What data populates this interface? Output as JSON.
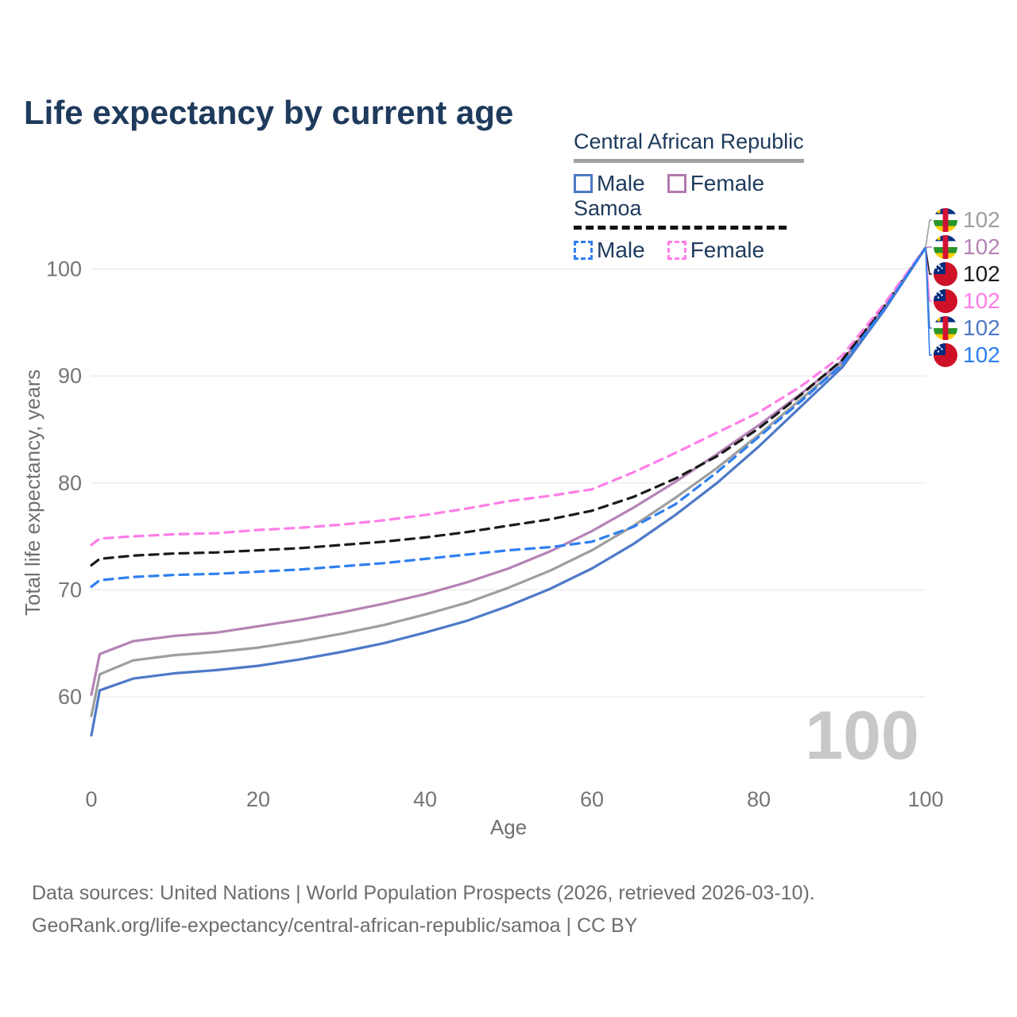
{
  "title": "Life expectancy by current age",
  "legend": {
    "groups": [
      {
        "id": "central-african-republic",
        "label": "Central African Republic",
        "rule_style": "solid",
        "rule_color": "#a0a0a0",
        "items": [
          {
            "id": "car-male",
            "label": "Male",
            "color": "#4d79c7",
            "dash": false
          },
          {
            "id": "car-female",
            "label": "Female",
            "color": "#b279ae",
            "dash": false
          }
        ]
      },
      {
        "id": "samoa",
        "label": "Samoa",
        "rule_style": "dashed",
        "rule_color": "#111111",
        "items": [
          {
            "id": "samoa-male",
            "label": "Male",
            "color": "#2e7ff0",
            "dash": true
          },
          {
            "id": "samoa-female",
            "label": "Female",
            "color": "#ff7de8",
            "dash": true
          }
        ]
      }
    ]
  },
  "chart_data": {
    "type": "line",
    "title": "Life expectancy by current age",
    "xlabel": "Age",
    "ylabel": "Total life expectancy, years",
    "xlim": [
      0,
      100
    ],
    "ylim": [
      55,
      103
    ],
    "x_ticks": [
      0,
      20,
      40,
      60,
      80,
      100
    ],
    "y_ticks": [
      60,
      70,
      80,
      90,
      100
    ],
    "grid": "horizontal-only",
    "legend_position": "top-right",
    "x": [
      0,
      1,
      5,
      10,
      15,
      20,
      25,
      30,
      35,
      40,
      45,
      50,
      55,
      60,
      65,
      70,
      75,
      80,
      85,
      90,
      95,
      100
    ],
    "series": [
      {
        "name": "Central African Republic — Total",
        "country": "Central African Republic",
        "group": "Total",
        "color": "#9e9e9e",
        "dash": false,
        "flag": "car",
        "end_label": "102",
        "values": [
          58.2,
          62.1,
          63.4,
          63.9,
          64.2,
          64.6,
          65.2,
          65.9,
          66.7,
          67.7,
          68.8,
          70.2,
          71.8,
          73.7,
          76.0,
          78.6,
          81.4,
          84.5,
          87.8,
          91.1,
          96.3,
          102
        ]
      },
      {
        "name": "Central African Republic — Female",
        "country": "Central African Republic",
        "group": "Female",
        "color": "#b583b5",
        "dash": false,
        "flag": "car",
        "end_label": "102",
        "values": [
          60.2,
          64.0,
          65.2,
          65.7,
          66.0,
          66.6,
          67.2,
          67.9,
          68.7,
          69.6,
          70.7,
          72.0,
          73.6,
          75.5,
          77.7,
          80.1,
          82.7,
          85.4,
          88.3,
          91.4,
          96.4,
          102
        ]
      },
      {
        "name": "Samoa — Total",
        "country": "Samoa",
        "group": "Total",
        "color": "#1a1a1a",
        "dash": true,
        "flag": "samoa",
        "end_label": "102",
        "values": [
          72.3,
          72.9,
          73.2,
          73.4,
          73.5,
          73.7,
          73.9,
          74.2,
          74.5,
          74.9,
          75.4,
          76.0,
          76.6,
          77.4,
          78.7,
          80.4,
          82.5,
          85.1,
          88.2,
          91.5,
          96.5,
          102
        ]
      },
      {
        "name": "Samoa — Female",
        "country": "Samoa",
        "group": "Female",
        "color": "#ff7de8",
        "dash": true,
        "flag": "samoa",
        "end_label": "102",
        "values": [
          74.2,
          74.8,
          75.0,
          75.2,
          75.3,
          75.6,
          75.8,
          76.1,
          76.5,
          77.0,
          77.6,
          78.3,
          78.8,
          79.4,
          81.0,
          82.8,
          84.7,
          86.6,
          89.0,
          91.9,
          96.7,
          102
        ]
      },
      {
        "name": "Central African Republic — Male",
        "country": "Central African Republic",
        "group": "Male",
        "color": "#4d79c7",
        "dash": false,
        "flag": "car",
        "end_label": "102",
        "values": [
          56.4,
          60.6,
          61.7,
          62.2,
          62.5,
          62.9,
          63.5,
          64.2,
          65.0,
          66.0,
          67.1,
          68.5,
          70.1,
          72.0,
          74.3,
          77.0,
          80.0,
          83.4,
          87.1,
          90.8,
          96.1,
          102
        ]
      },
      {
        "name": "Samoa — Male",
        "country": "Samoa",
        "group": "Male",
        "color": "#2e7ff0",
        "dash": true,
        "flag": "samoa",
        "end_label": "102",
        "values": [
          70.3,
          70.9,
          71.2,
          71.4,
          71.5,
          71.7,
          71.9,
          72.2,
          72.5,
          72.9,
          73.3,
          73.7,
          74.0,
          74.5,
          75.9,
          78.0,
          81.0,
          84.3,
          87.6,
          91.1,
          96.2,
          102
        ]
      }
    ]
  },
  "annotations": {
    "age_watermark": "100"
  },
  "footer": {
    "line1": "Data sources: United Nations | World Population Prospects (2026, retrieved 2026-03-10).",
    "line2": "GeoRank.org/life-expectancy/central-african-republic/samoa | CC BY"
  },
  "colors": {
    "title_text": "#1e3a5c",
    "tick_text": "#757575",
    "axis_title_text": "#6f6f6f",
    "gridline": "#ededed",
    "watermark": "#c8c8c8",
    "footer_text": "#6d6d6d"
  }
}
